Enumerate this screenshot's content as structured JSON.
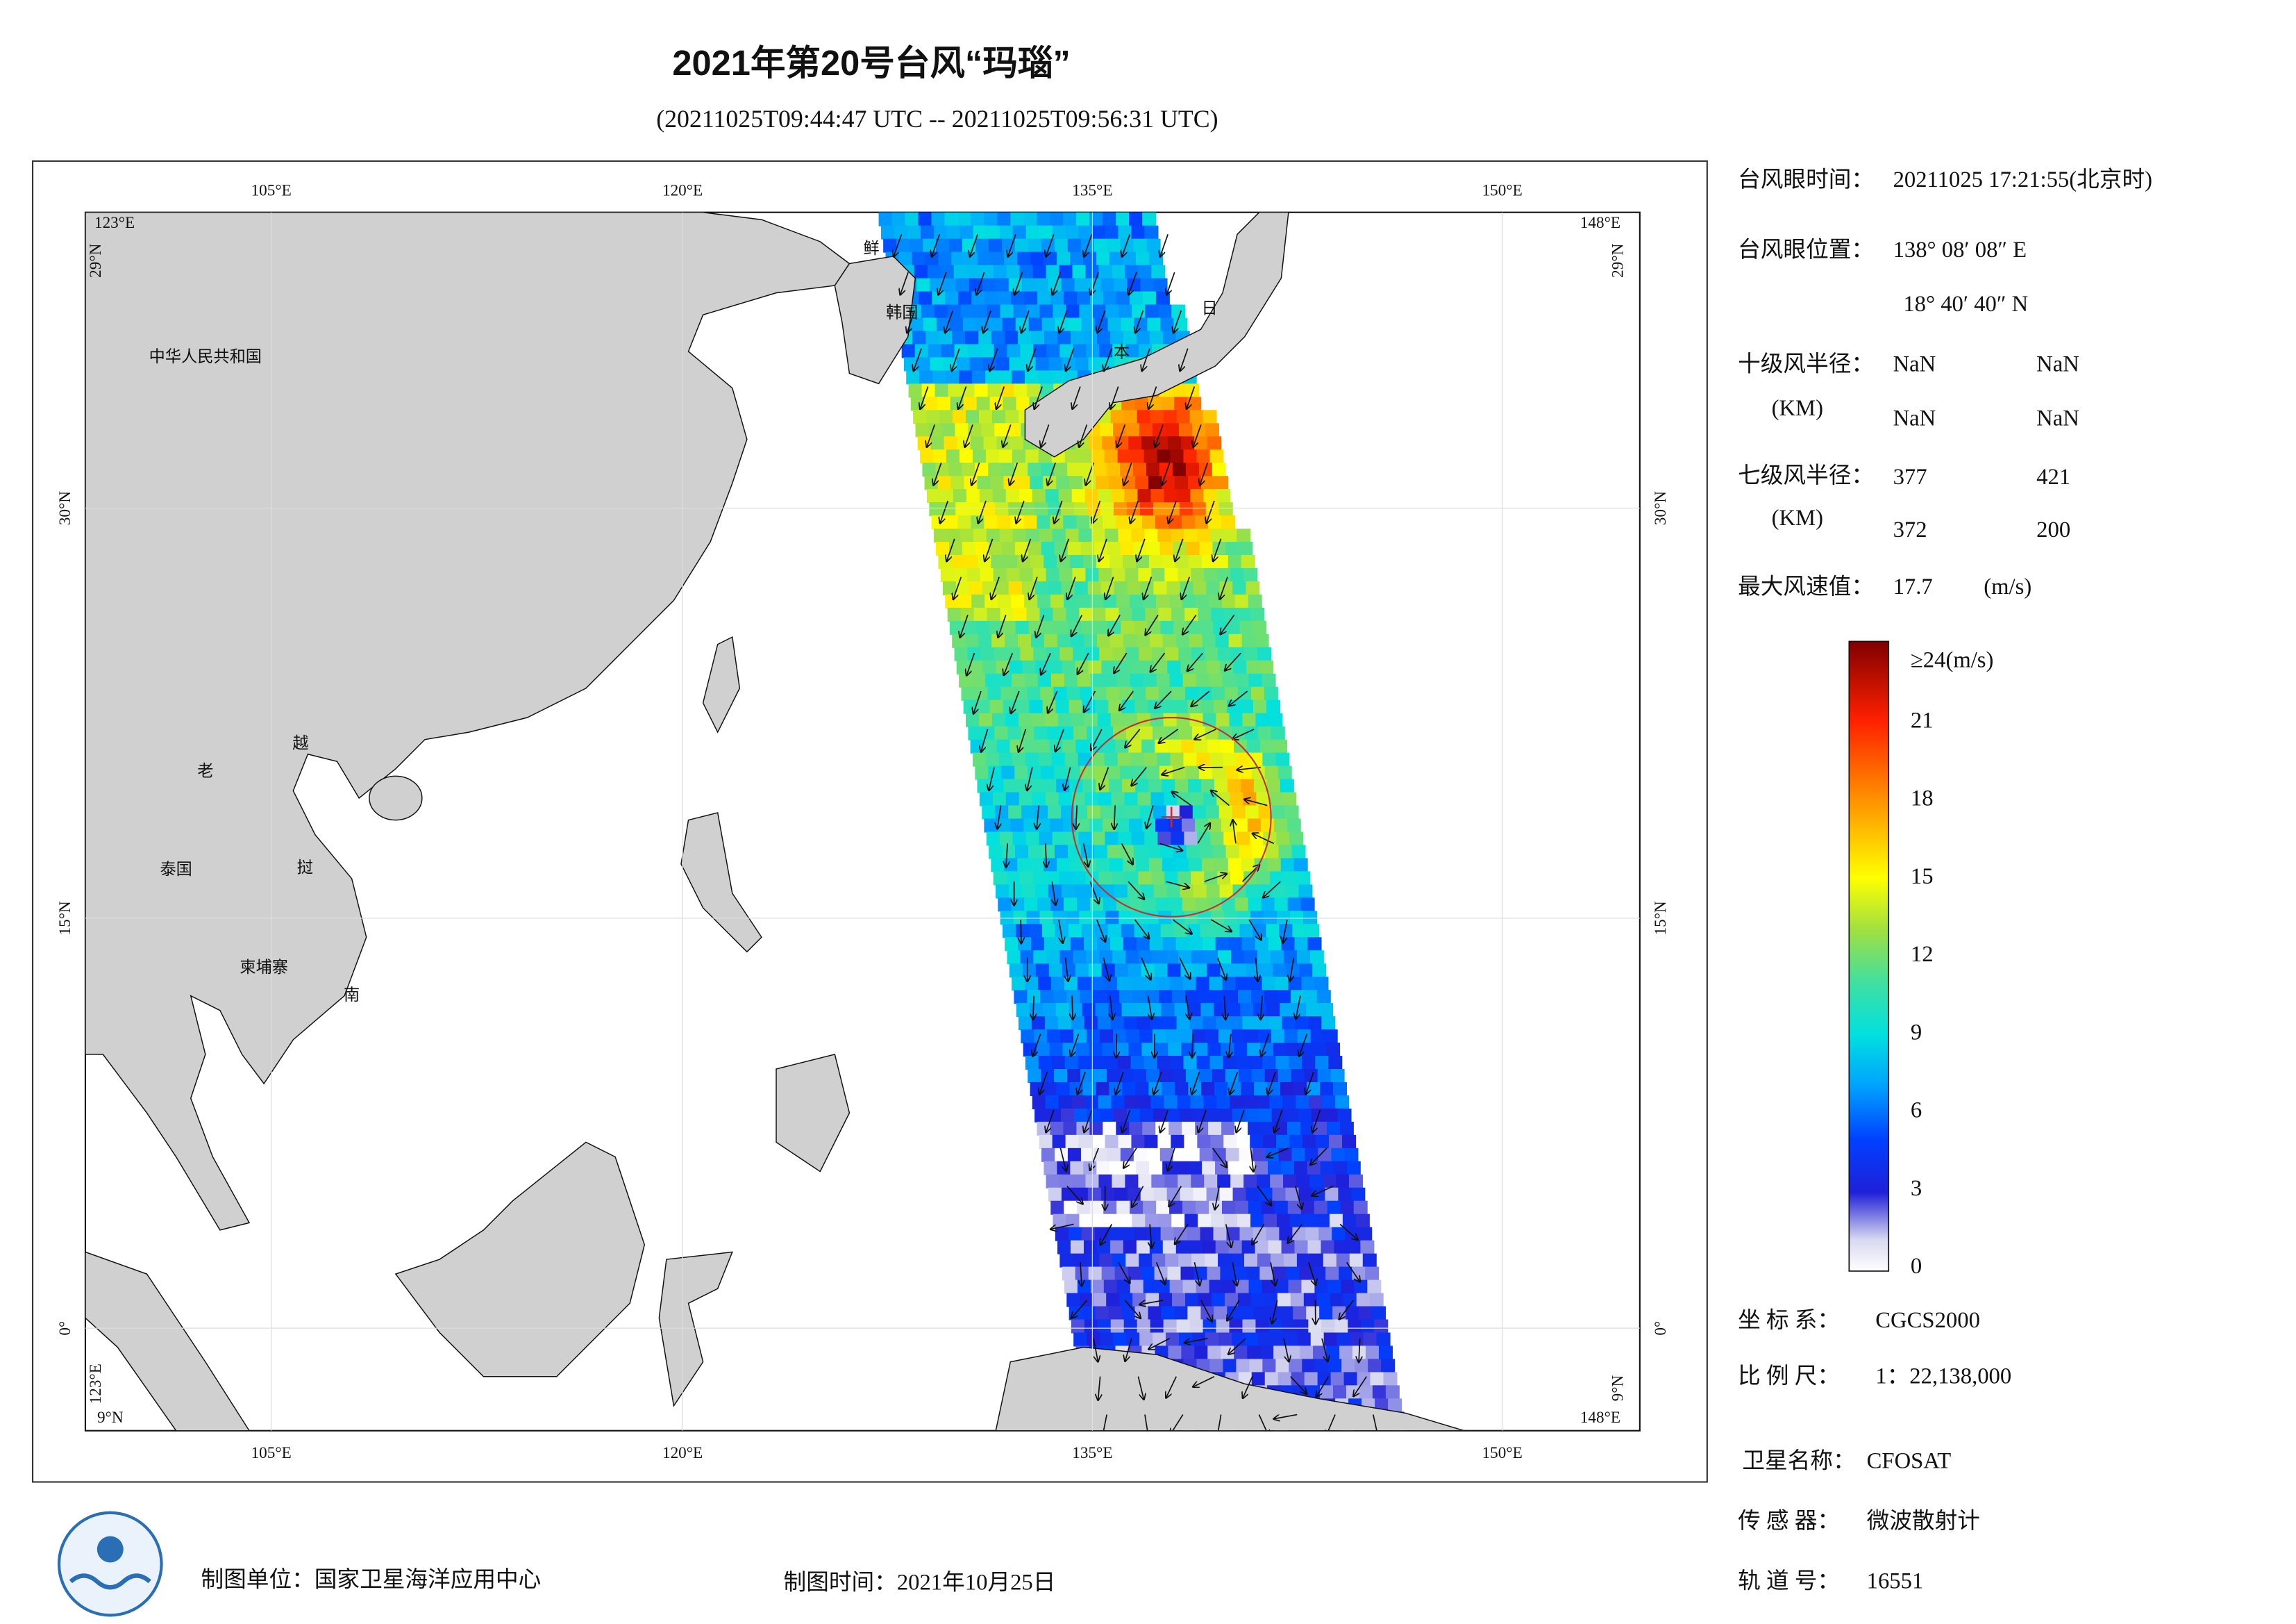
{
  "title": "2021年第20号台风“玛瑙”",
  "subtitle": "(20211025T09:44:47 UTC -- 20211025T09:56:31 UTC)",
  "map": {
    "lon_labels": [
      "105°E",
      "120°E",
      "135°E",
      "150°E"
    ],
    "lat_labels": [
      "30°N",
      "15°N",
      "0°"
    ],
    "corner_lon": [
      "123°E",
      "148°E"
    ],
    "corner_lat": [
      "29°N",
      "9°N"
    ],
    "places": [
      "中华人民共和国",
      "老",
      "越",
      "泰国",
      "挝",
      "柬埔寨",
      "南",
      "鲜",
      "韩国",
      "日",
      "本"
    ]
  },
  "info": {
    "eye_time": {
      "label": "台风眼时间：",
      "value": "20211025 17:21:55(北京时)"
    },
    "eye_position": {
      "label": "台风眼位置：",
      "lon": "138° 08′ 08″ E",
      "lat": "18° 40′ 40″ N"
    },
    "r10": {
      "label": "十级风半径：",
      "unit": "(KM)",
      "values": [
        "NaN",
        "NaN",
        "NaN",
        "NaN"
      ]
    },
    "r7": {
      "label": "七级风半径：",
      "unit": "(KM)",
      "values": [
        377,
        421,
        372,
        200
      ]
    },
    "max_wind": {
      "label": "最大风速值：",
      "value": 17.7,
      "unit": "(m/s)"
    },
    "crs": {
      "label": "坐 标 系：",
      "value": "CGCS2000"
    },
    "scale": {
      "label": "比 例 尺：",
      "value": "1：22,138,000"
    },
    "satellite": {
      "label": "卫星名称：",
      "value": "CFOSAT"
    },
    "sensor": {
      "label": "传 感 器：",
      "value": "微波散射计"
    },
    "orbit": {
      "label": "轨 道 号：",
      "value": 16551
    }
  },
  "colorbar": {
    "lim": [
      0,
      24
    ],
    "ticks": [
      0,
      3,
      6,
      9,
      12,
      15,
      18,
      21
    ],
    "max_label": "≥24(m/s)"
  },
  "footer": {
    "unit": "制图单位：国家卫星海洋应用中心",
    "time": "制图时间：2021年10月25日"
  }
}
